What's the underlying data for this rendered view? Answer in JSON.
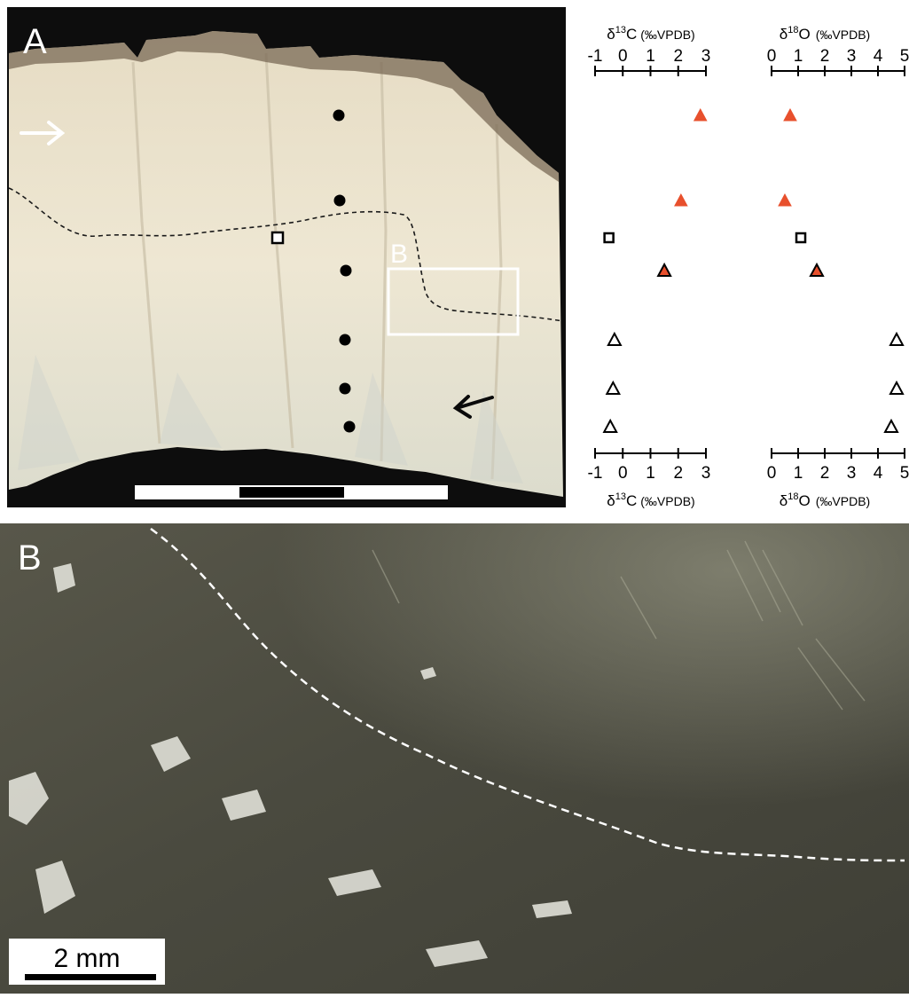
{
  "panels": {
    "a_label": "A",
    "inset_label": "B",
    "b_label": "B"
  },
  "scale_bar": {
    "label": "2 mm"
  },
  "colors": {
    "orange_triangle": "#e8502d",
    "outline_marker": "#000000",
    "sample_dot": "#000000",
    "a_background": "#0c0c0c",
    "b_background": "#4a4a3a"
  },
  "chart_data": [
    {
      "type": "scatter",
      "title": "",
      "axis_top_label": {
        "delta": "δ",
        "sup": "13",
        "element": "C",
        "unit": "(‰VPDB)"
      },
      "axis_bottom_label": {
        "delta": "δ",
        "sup": "13",
        "element": "C",
        "unit": "(‰VPDB)"
      },
      "xlabel": "δ13C (‰VPDB)",
      "xlim": [
        -1,
        3
      ],
      "ticks": [
        "-1",
        "0",
        "1",
        "2",
        "3"
      ],
      "tick_values": [
        -1,
        0,
        1,
        2,
        3
      ],
      "grid": false,
      "points": [
        {
          "sample": 1,
          "x": 2.8,
          "marker": "triangle-filled-orange"
        },
        {
          "sample": 2,
          "x": 2.1,
          "marker": "triangle-filled-orange"
        },
        {
          "sample": 3,
          "x": -0.5,
          "marker": "square-open"
        },
        {
          "sample": 4,
          "x": 1.5,
          "marker": "triangle-orange-outlined"
        },
        {
          "sample": 5,
          "x": -0.3,
          "marker": "triangle-open"
        },
        {
          "sample": 6,
          "x": -0.35,
          "marker": "triangle-open"
        },
        {
          "sample": 7,
          "x": -0.45,
          "marker": "triangle-open"
        }
      ]
    },
    {
      "type": "scatter",
      "title": "",
      "axis_top_label": {
        "delta": "δ",
        "sup": "18",
        "element": "O",
        "unit": "(‰VPDB)"
      },
      "axis_bottom_label": {
        "delta": "δ",
        "sup": "18",
        "element": "O",
        "unit": "(‰VPDB)"
      },
      "xlabel": "δ18O (‰VPDB)",
      "xlim": [
        0,
        5
      ],
      "ticks": [
        "0",
        "1",
        "2",
        "3",
        "4",
        "5"
      ],
      "tick_values": [
        0,
        1,
        2,
        3,
        4,
        5
      ],
      "grid": false,
      "points": [
        {
          "sample": 1,
          "x": 0.7,
          "marker": "triangle-filled-orange"
        },
        {
          "sample": 2,
          "x": 0.5,
          "marker": "triangle-filled-orange"
        },
        {
          "sample": 3,
          "x": 1.1,
          "marker": "square-open"
        },
        {
          "sample": 4,
          "x": 1.7,
          "marker": "triangle-orange-outlined"
        },
        {
          "sample": 5,
          "x": 4.7,
          "marker": "triangle-open"
        },
        {
          "sample": 6,
          "x": 4.7,
          "marker": "triangle-open"
        },
        {
          "sample": 7,
          "x": 4.5,
          "marker": "triangle-open"
        }
      ]
    }
  ]
}
